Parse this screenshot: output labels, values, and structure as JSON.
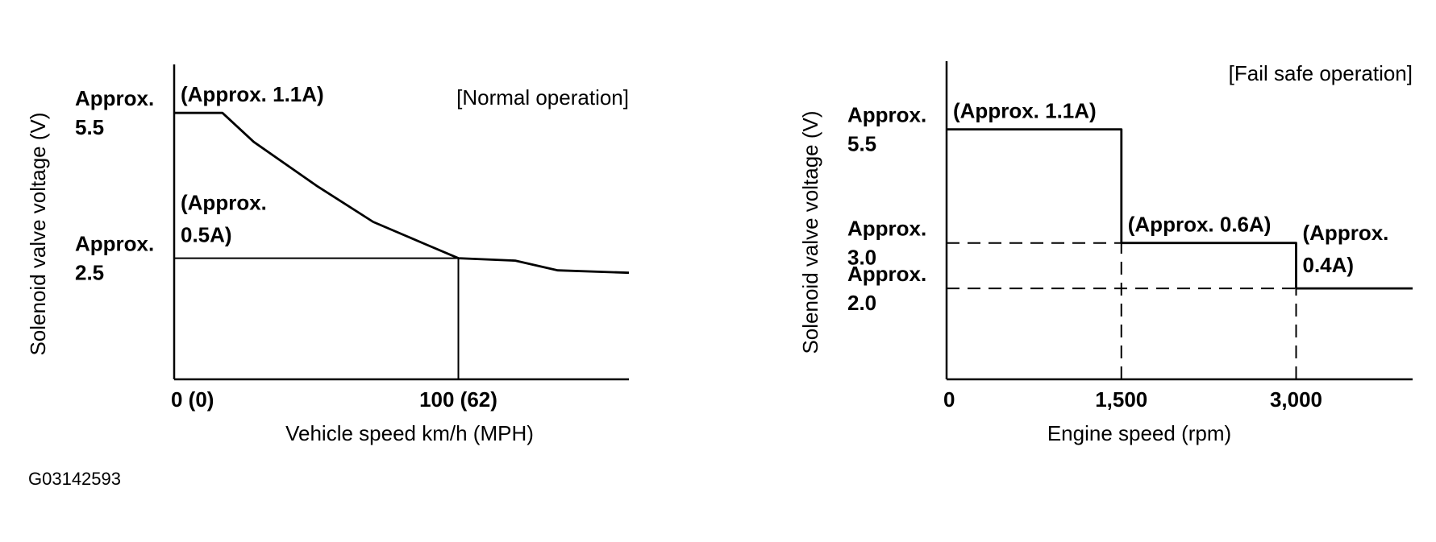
{
  "figure_id": "G03142593",
  "chart_data": [
    {
      "type": "line",
      "title": "[Normal operation]",
      "xlabel": "Vehicle speed km/h (MPH)",
      "ylabel": "Solenoid valve voltage (V)",
      "xlim": [
        0,
        160
      ],
      "ylim": [
        0,
        6.5
      ],
      "x_ticks": [
        {
          "value": 0,
          "label": "0 (0)"
        },
        {
          "value": 100,
          "label": "100 (62)"
        }
      ],
      "y_ticks": [
        {
          "value": 5.5,
          "label_line1": "Approx.",
          "label_line2": "5.5"
        },
        {
          "value": 2.5,
          "label_line1": "Approx.",
          "label_line2": "2.5"
        }
      ],
      "series": [
        {
          "name": "Solenoid valve voltage",
          "x": [
            0,
            17,
            28,
            50,
            70,
            88,
            100,
            120,
            135,
            160
          ],
          "y": [
            5.5,
            5.5,
            4.9,
            4.0,
            3.25,
            2.8,
            2.5,
            2.45,
            2.25,
            2.2
          ]
        }
      ],
      "reference_lines": [
        {
          "orientation": "horizontal",
          "value": 2.5,
          "from": 0,
          "to": 100,
          "style": "solid"
        },
        {
          "orientation": "vertical",
          "value": 100,
          "from": 0,
          "to": 2.5,
          "style": "solid"
        }
      ],
      "annotations": [
        {
          "text": "(Approx. 1.1A)",
          "x": 0,
          "y": 5.5
        },
        {
          "text_line1": "(Approx.",
          "text_line2": "0.5A)",
          "x": 0,
          "y": 2.5
        }
      ]
    },
    {
      "type": "line",
      "title": "[Fail safe operation]",
      "xlabel": "Engine speed (rpm)",
      "ylabel": "Solenoid valve voltage (V)",
      "xlim": [
        0,
        4000
      ],
      "ylim": [
        0,
        7.0
      ],
      "x_ticks": [
        {
          "value": 0,
          "label": "0"
        },
        {
          "value": 1500,
          "label": "1,500"
        },
        {
          "value": 3000,
          "label": "3,000"
        }
      ],
      "y_ticks": [
        {
          "value": 5.5,
          "label_line1": "Approx.",
          "label_line2": "5.5"
        },
        {
          "value": 3.0,
          "label_line1": "Approx.",
          "label_line2": "3.0"
        },
        {
          "value": 2.0,
          "label_line1": "Approx.",
          "label_line2": "2.0"
        }
      ],
      "series": [
        {
          "name": "Solenoid valve voltage",
          "x": [
            0,
            1500,
            1500,
            3000,
            3000,
            4000
          ],
          "y": [
            5.5,
            5.5,
            3.0,
            3.0,
            2.0,
            2.0
          ]
        }
      ],
      "reference_lines": [
        {
          "orientation": "horizontal",
          "value": 3.0,
          "from": 0,
          "to": 1500,
          "style": "dashed"
        },
        {
          "orientation": "horizontal",
          "value": 2.0,
          "from": 0,
          "to": 3000,
          "style": "dashed"
        },
        {
          "orientation": "vertical",
          "value": 1500,
          "from": 0,
          "to": 3.0,
          "style": "dashed"
        },
        {
          "orientation": "vertical",
          "value": 3000,
          "from": 0,
          "to": 2.0,
          "style": "dashed"
        }
      ],
      "annotations": [
        {
          "text": "(Approx. 1.1A)",
          "x": 0,
          "y": 5.5
        },
        {
          "text": "(Approx. 0.6A)",
          "x": 1500,
          "y": 3.0
        },
        {
          "text_line1": "(Approx.",
          "text_line2": "0.4A)",
          "x": 3000,
          "y": 2.0
        }
      ]
    }
  ]
}
